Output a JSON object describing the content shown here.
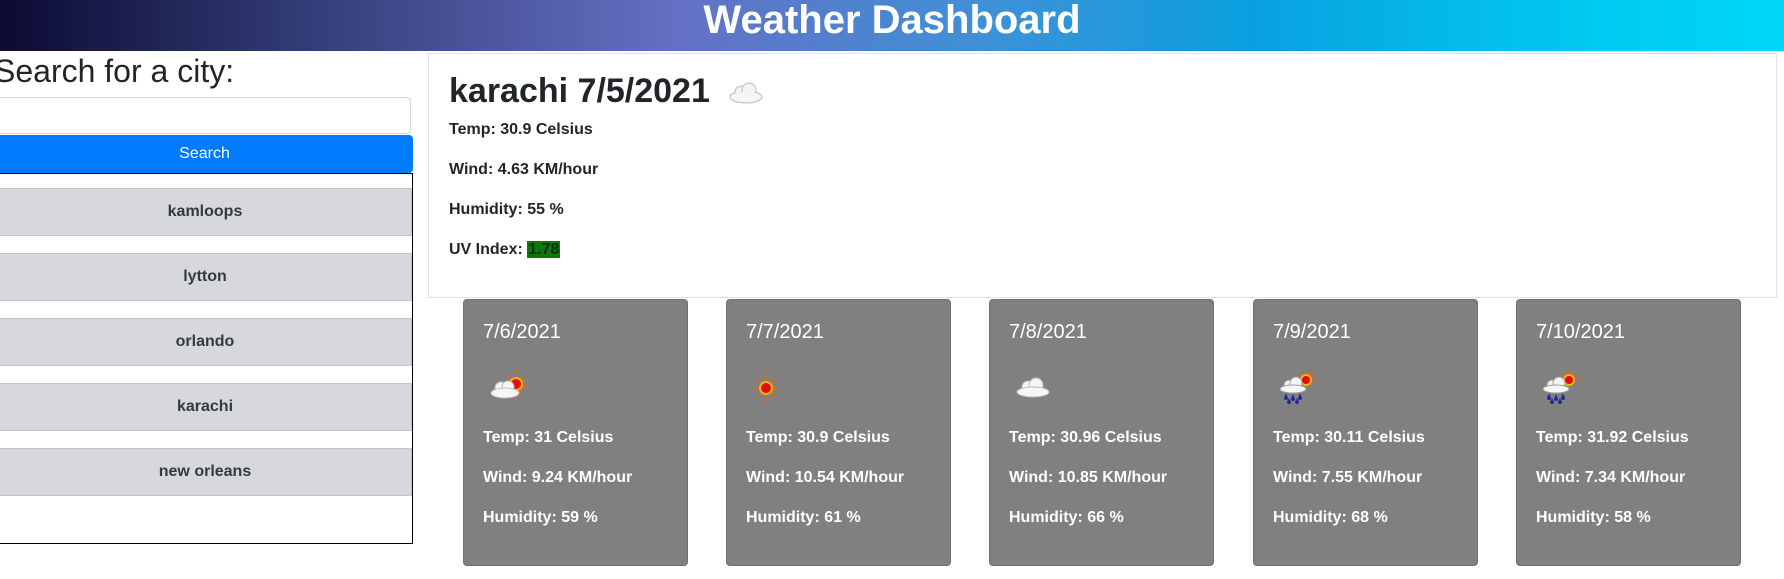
{
  "header": {
    "title": "Weather Dashboard"
  },
  "search": {
    "title": "Search for a city:",
    "input_value": "",
    "button_label": "Search"
  },
  "history": [
    {
      "label": "kamloops"
    },
    {
      "label": "lytton"
    },
    {
      "label": "orlando"
    },
    {
      "label": "karachi"
    },
    {
      "label": "new orleans"
    }
  ],
  "current": {
    "city_date": "karachi 7/5/2021",
    "icon": "cloud-icon",
    "temp": "Temp: 30.9 Celsius",
    "wind": "Wind: 4.63 KM/hour",
    "humidity": "Humidity: 55 %",
    "uv_label": "UV Index:",
    "uv_value": "1.78",
    "uv_color": "#0b7a0b"
  },
  "forecast": [
    {
      "date": "7/6/2021",
      "icon": "partly-cloudy-icon",
      "temp": "Temp: 31 Celsius",
      "wind": "Wind: 9.24 KM/hour",
      "humidity": "Humidity: 59 %"
    },
    {
      "date": "7/7/2021",
      "icon": "sun-icon",
      "temp": "Temp: 30.9 Celsius",
      "wind": "Wind: 10.54 KM/hour",
      "humidity": "Humidity: 61 %"
    },
    {
      "date": "7/8/2021",
      "icon": "cloud-icon",
      "temp": "Temp: 30.96 Celsius",
      "wind": "Wind: 10.85 KM/hour",
      "humidity": "Humidity: 66 %"
    },
    {
      "date": "7/9/2021",
      "icon": "rain-sun-icon",
      "temp": "Temp: 30.11 Celsius",
      "wind": "Wind: 7.55 KM/hour",
      "humidity": "Humidity: 68 %"
    },
    {
      "date": "7/10/2021",
      "icon": "rain-sun-icon",
      "temp": "Temp: 31.92 Celsius",
      "wind": "Wind: 7.34 KM/hour",
      "humidity": "Humidity: 58 %"
    }
  ]
}
